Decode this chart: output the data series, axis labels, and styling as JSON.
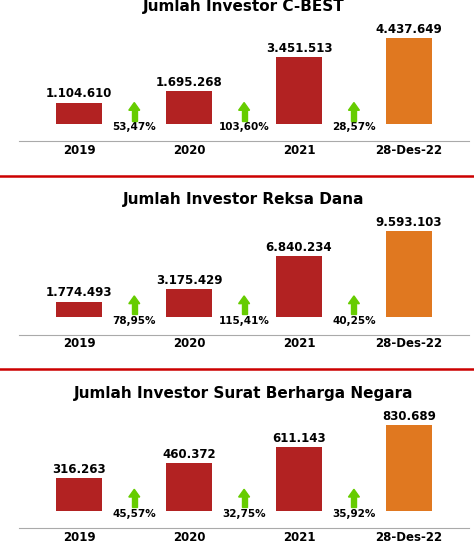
{
  "charts": [
    {
      "title": "Jumlah Investor C-BEST",
      "categories": [
        "2019",
        "2020",
        "2021",
        "28-Des-22"
      ],
      "values": [
        1104610,
        1695268,
        3451513,
        4437649
      ],
      "labels": [
        "1.104.610",
        "1.695.268",
        "3.451.513",
        "4.437.649"
      ],
      "pct_labels": [
        "53,47%",
        "103,60%",
        "28,57%"
      ],
      "bar_colors": [
        "#b22222",
        "#b22222",
        "#b22222",
        "#e07820"
      ],
      "arrow_color": "#66cc00"
    },
    {
      "title": "Jumlah Investor Reksa Dana",
      "categories": [
        "2019",
        "2020",
        "2021",
        "28-Des-22"
      ],
      "values": [
        1774493,
        3175429,
        6840234,
        9593103
      ],
      "labels": [
        "1.774.493",
        "3.175.429",
        "6.840.234",
        "9.593.103"
      ],
      "pct_labels": [
        "78,95%",
        "115,41%",
        "40,25%"
      ],
      "bar_colors": [
        "#b22222",
        "#b22222",
        "#b22222",
        "#e07820"
      ],
      "arrow_color": "#66cc00"
    },
    {
      "title": "Jumlah Investor Surat Berharga Negara",
      "categories": [
        "2019",
        "2020",
        "2021",
        "28-Des-22"
      ],
      "values": [
        316263,
        460372,
        611143,
        830689
      ],
      "labels": [
        "316.263",
        "460.372",
        "611.143",
        "830.689"
      ],
      "pct_labels": [
        "45,57%",
        "32,75%",
        "35,92%"
      ],
      "bar_colors": [
        "#b22222",
        "#b22222",
        "#b22222",
        "#e07820"
      ],
      "arrow_color": "#66cc00"
    }
  ],
  "bg_color": "#ffffff",
  "title_fontsize": 11,
  "label_fontsize": 8.5,
  "pct_fontsize": 7.5,
  "tick_fontsize": 8.5,
  "separator_color": "#cc0000",
  "separator_linewidth": 1.8,
  "bar_width": 0.42
}
